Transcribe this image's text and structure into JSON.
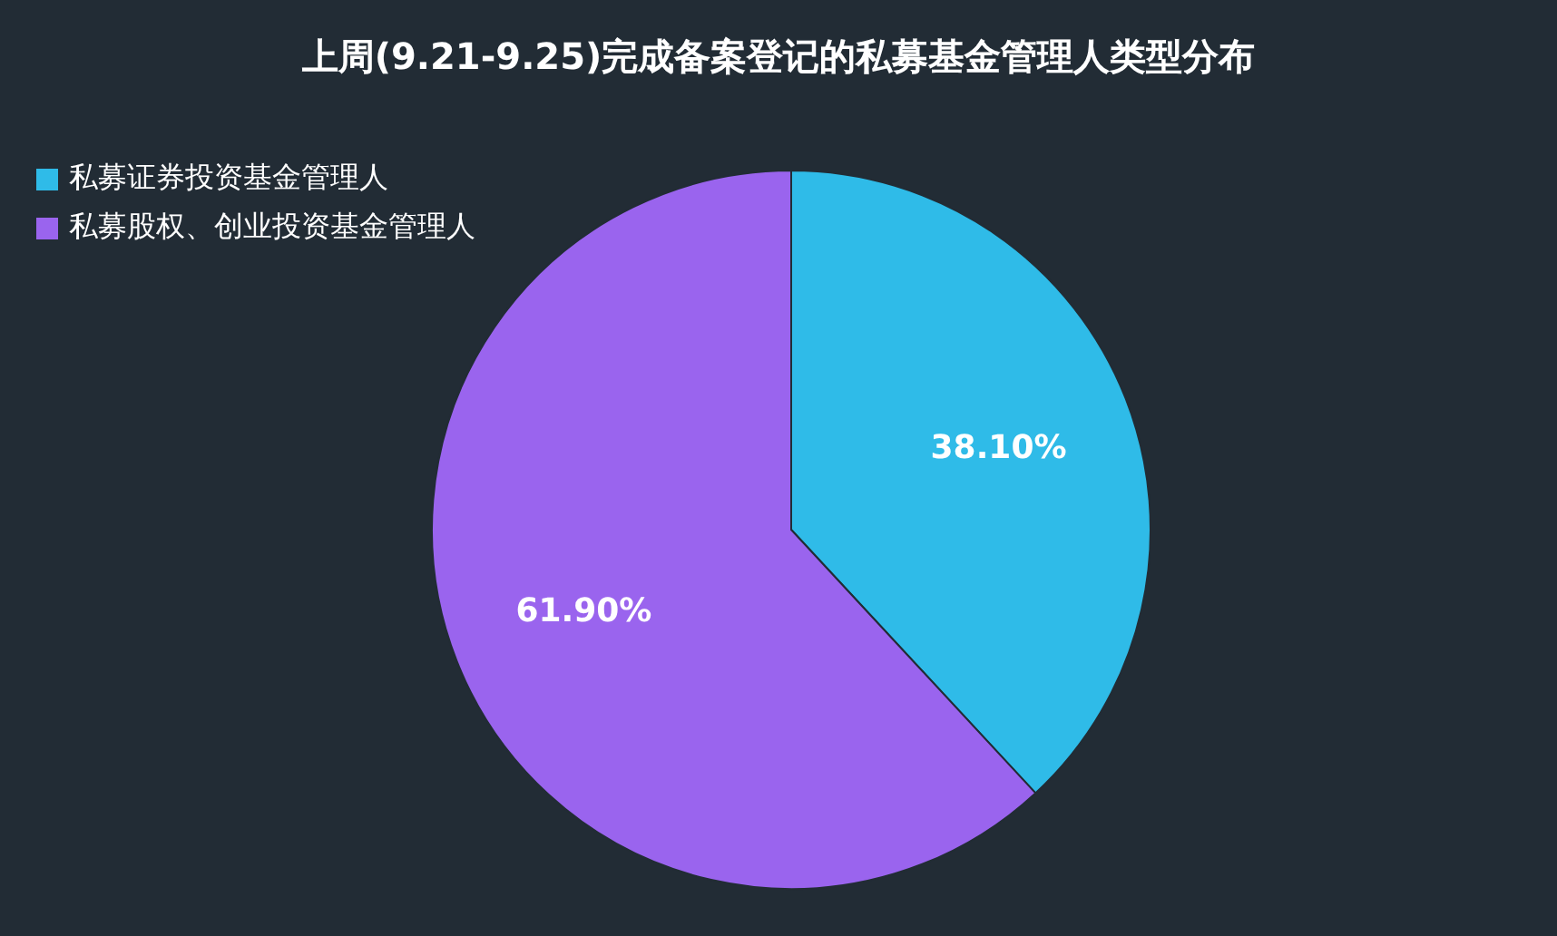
{
  "chart_data": {
    "type": "pie",
    "title": "上周(9.21-9.25)完成备案登记的私募基金管理人类型分布",
    "categories": [
      "私募证券投资基金管理人",
      "私募股权、创业投资基金管理人"
    ],
    "values": [
      38.1,
      61.9
    ],
    "colors": [
      "#2fbbe8",
      "#9a64ee"
    ],
    "value_labels": [
      "38.10%",
      "61.90%"
    ],
    "legend": "top left"
  }
}
